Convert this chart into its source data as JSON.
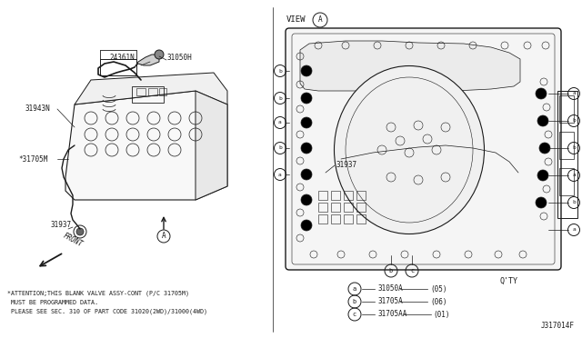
{
  "bg_color": "#ffffff",
  "line_color": "#1a1a1a",
  "fig_width": 6.4,
  "fig_height": 3.72,
  "dpi": 100,
  "fig_code": "J317014F",
  "attention_lines": [
    "*ATTENTION;THIS BLANK VALVE ASSY-CONT (P/C 31705M)",
    " MUST BE PROGRAMMED DATA.",
    " PLEASE SEE SEC. 310 OF PART CODE 31020(2WD)/31000(4WD)"
  ],
  "parts_legend": [
    {
      "circle": "a",
      "part": "31050A",
      "qty": "(05)",
      "row": 0
    },
    {
      "circle": "b",
      "part": "31705A",
      "qty": "(06)",
      "row": 1
    },
    {
      "circle": "c",
      "part": "31705AA",
      "qty": "(01)",
      "row": 2
    }
  ]
}
